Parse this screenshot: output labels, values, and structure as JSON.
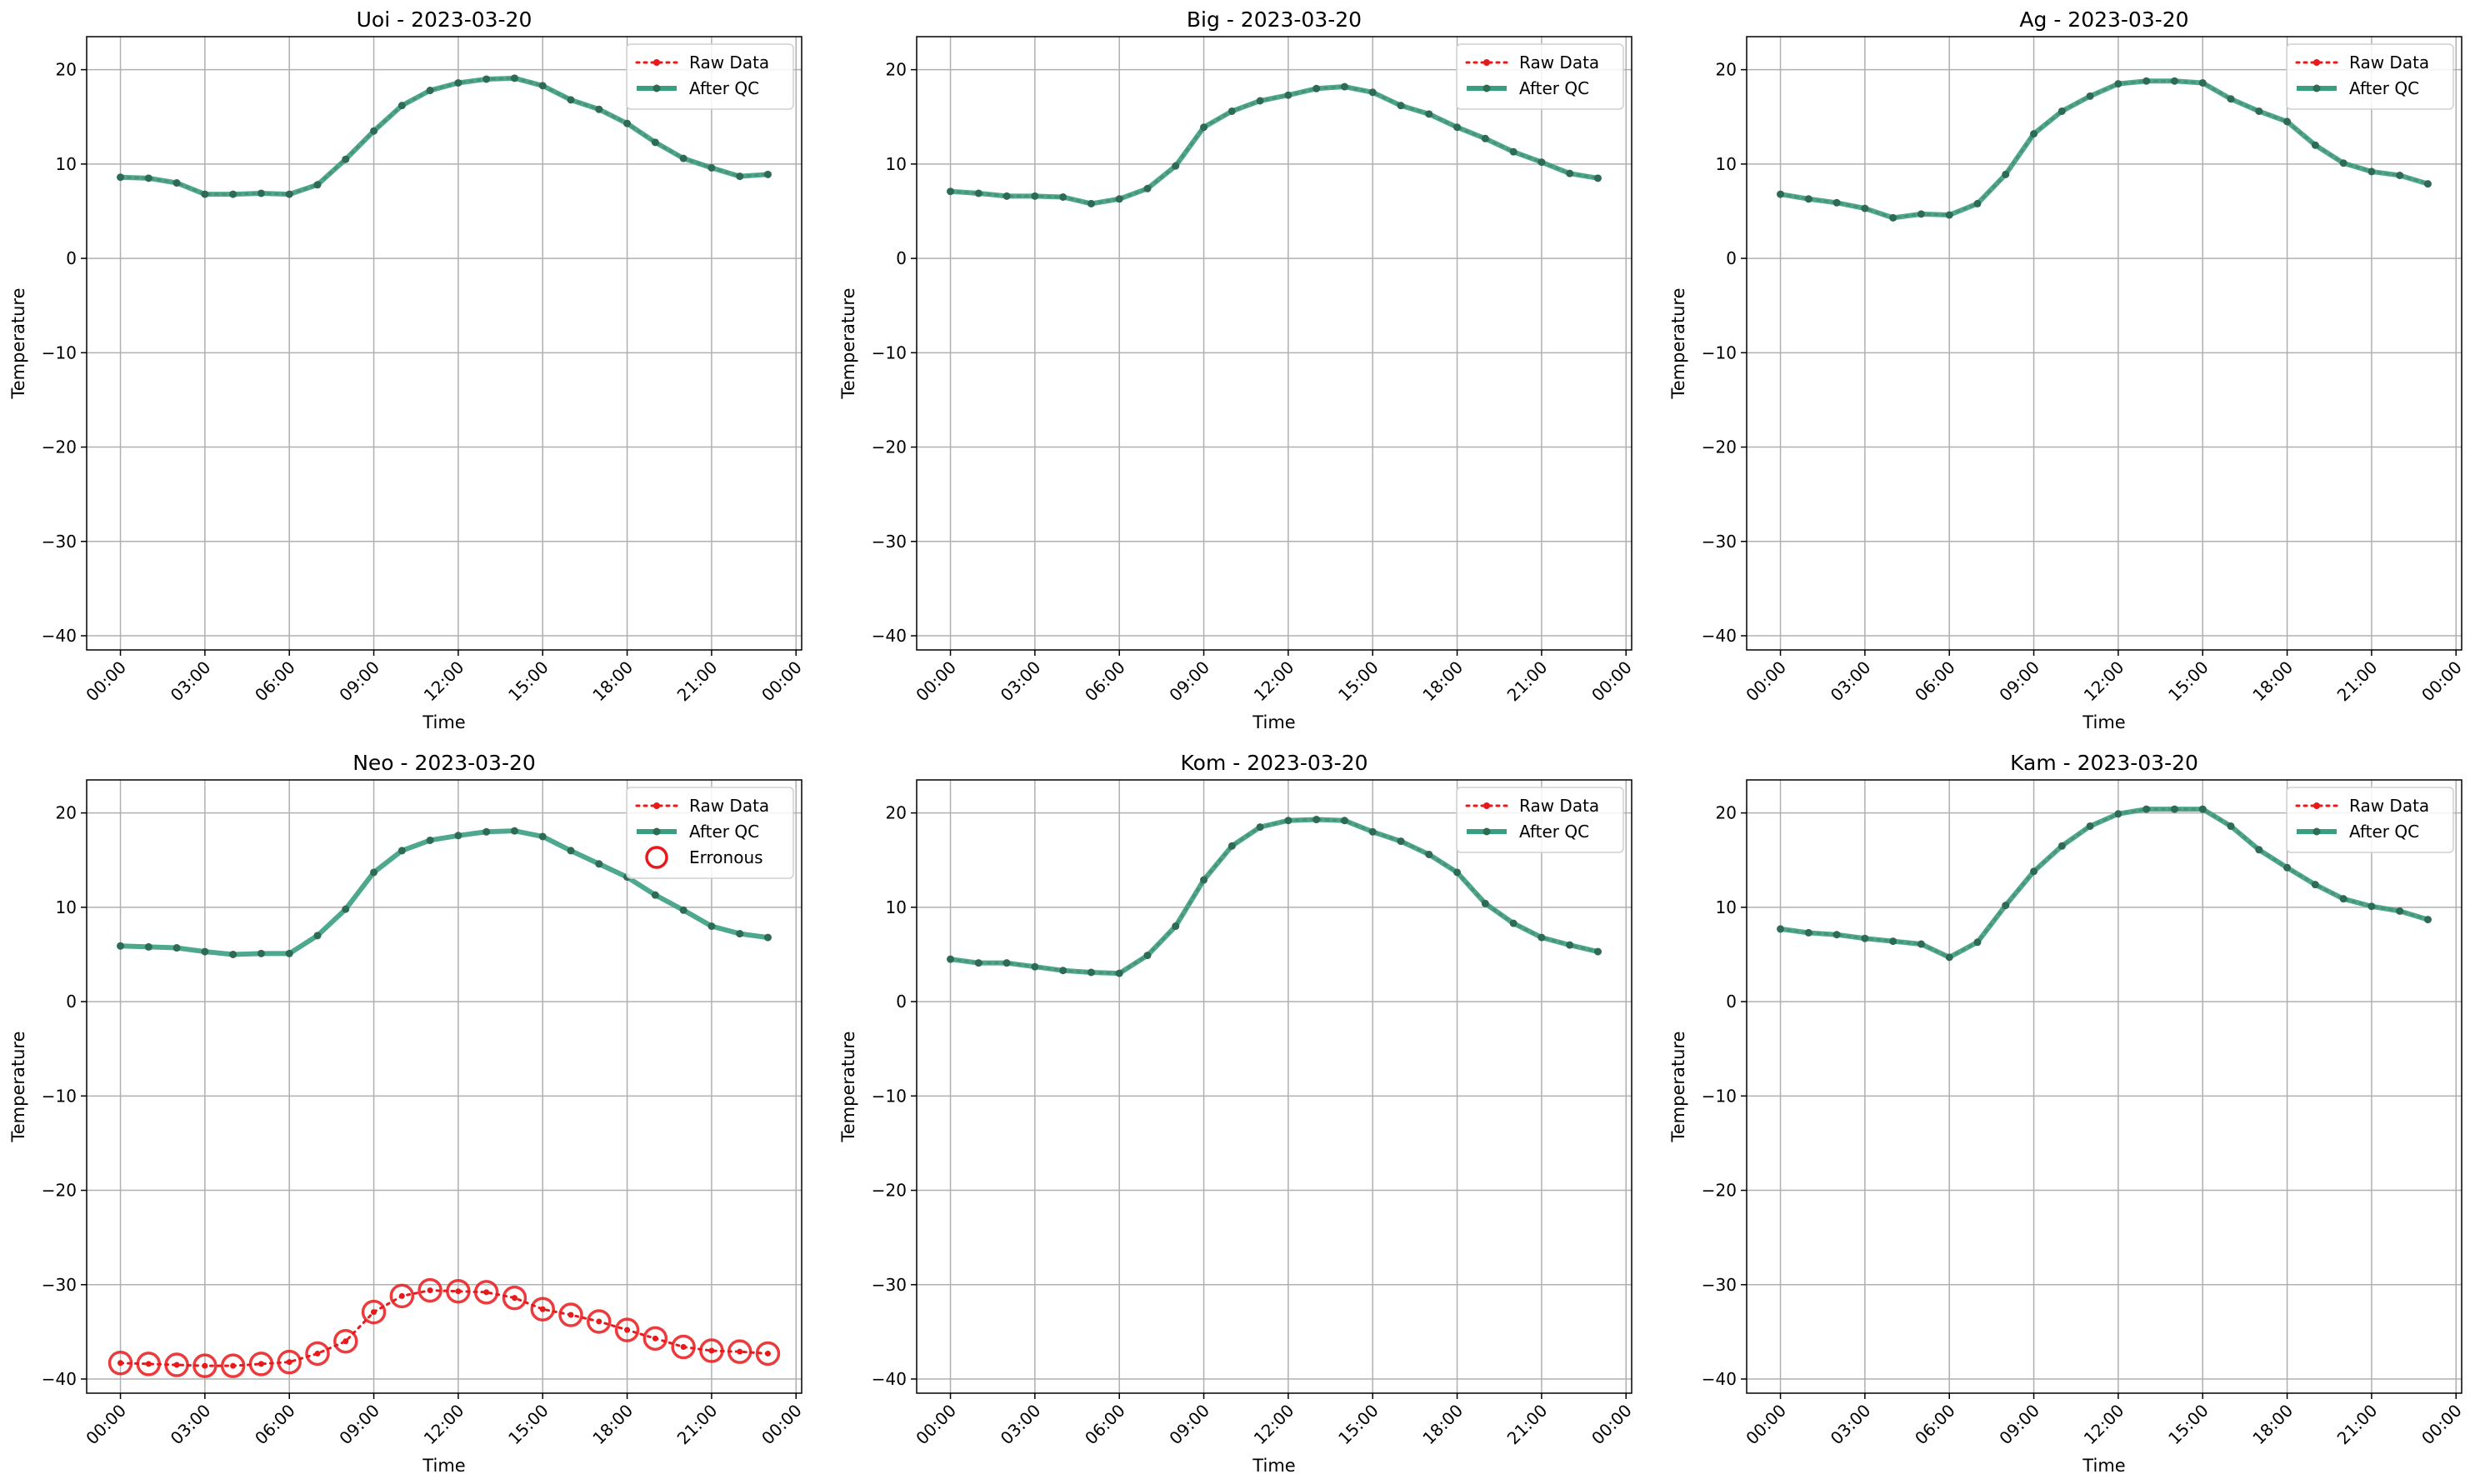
{
  "figure": {
    "colors": {
      "raw": "#e8191b",
      "after_qc_line": "#3a9e82",
      "after_qc_marker": "#2e6b55",
      "erroneous": "#e8191b",
      "grid": "#b0b0b0",
      "axes": "#000000"
    }
  },
  "chart_data": [
    {
      "type": "line",
      "title": "Uoi - 2023-03-20",
      "xlabel": "Time",
      "ylabel": "Temperature",
      "x": [
        "00:00",
        "01:00",
        "02:00",
        "03:00",
        "04:00",
        "05:00",
        "06:00",
        "07:00",
        "08:00",
        "09:00",
        "10:00",
        "11:00",
        "12:00",
        "13:00",
        "14:00",
        "15:00",
        "16:00",
        "17:00",
        "18:00",
        "19:00",
        "20:00",
        "21:00",
        "22:00",
        "23:00"
      ],
      "xticks": [
        "00:00",
        "03:00",
        "06:00",
        "09:00",
        "12:00",
        "15:00",
        "18:00",
        "21:00",
        "00:00"
      ],
      "yticks": [
        "20",
        "10",
        "0",
        "−10",
        "−20",
        "−30",
        "−40"
      ],
      "ylim": [
        -41.5,
        23.5
      ],
      "grid": true,
      "legend_position": "top-right",
      "series": [
        {
          "name": "Raw Data",
          "values": [
            8.6,
            8.5,
            8.0,
            6.8,
            6.8,
            6.9,
            6.8,
            7.8,
            10.5,
            13.5,
            16.2,
            17.8,
            18.6,
            19.0,
            19.1,
            18.3,
            16.8,
            15.8,
            14.3,
            12.3,
            10.6,
            9.6,
            8.7,
            8.9
          ]
        },
        {
          "name": "After QC",
          "values": [
            8.6,
            8.5,
            8.0,
            6.8,
            6.8,
            6.9,
            6.8,
            7.8,
            10.5,
            13.5,
            16.2,
            17.8,
            18.6,
            19.0,
            19.1,
            18.3,
            16.8,
            15.8,
            14.3,
            12.3,
            10.6,
            9.6,
            8.7,
            8.9
          ]
        }
      ]
    },
    {
      "type": "line",
      "title": "Big - 2023-03-20",
      "xlabel": "Time",
      "ylabel": "Temperature",
      "x": [
        "00:00",
        "01:00",
        "02:00",
        "03:00",
        "04:00",
        "05:00",
        "06:00",
        "07:00",
        "08:00",
        "09:00",
        "10:00",
        "11:00",
        "12:00",
        "13:00",
        "14:00",
        "15:00",
        "16:00",
        "17:00",
        "18:00",
        "19:00",
        "20:00",
        "21:00",
        "22:00",
        "23:00"
      ],
      "xticks": [
        "00:00",
        "03:00",
        "06:00",
        "09:00",
        "12:00",
        "15:00",
        "18:00",
        "21:00",
        "00:00"
      ],
      "yticks": [
        "20",
        "10",
        "0",
        "−10",
        "−20",
        "−30",
        "−40"
      ],
      "ylim": [
        -41.5,
        23.5
      ],
      "grid": true,
      "legend_position": "top-right",
      "series": [
        {
          "name": "Raw Data",
          "values": [
            7.1,
            6.9,
            6.6,
            6.6,
            6.5,
            5.8,
            6.3,
            7.4,
            9.8,
            13.9,
            15.6,
            16.7,
            17.3,
            18.0,
            18.2,
            17.6,
            16.2,
            15.3,
            13.9,
            12.7,
            11.3,
            10.2,
            9.0,
            8.5
          ]
        },
        {
          "name": "After QC",
          "values": [
            7.1,
            6.9,
            6.6,
            6.6,
            6.5,
            5.8,
            6.3,
            7.4,
            9.8,
            13.9,
            15.6,
            16.7,
            17.3,
            18.0,
            18.2,
            17.6,
            16.2,
            15.3,
            13.9,
            12.7,
            11.3,
            10.2,
            9.0,
            8.5
          ]
        }
      ]
    },
    {
      "type": "line",
      "title": "Ag - 2023-03-20",
      "xlabel": "Time",
      "ylabel": "Temperature",
      "x": [
        "00:00",
        "01:00",
        "02:00",
        "03:00",
        "04:00",
        "05:00",
        "06:00",
        "07:00",
        "08:00",
        "09:00",
        "10:00",
        "11:00",
        "12:00",
        "13:00",
        "14:00",
        "15:00",
        "16:00",
        "17:00",
        "18:00",
        "19:00",
        "20:00",
        "21:00",
        "22:00",
        "23:00"
      ],
      "xticks": [
        "00:00",
        "03:00",
        "06:00",
        "09:00",
        "12:00",
        "15:00",
        "18:00",
        "21:00",
        "00:00"
      ],
      "yticks": [
        "20",
        "10",
        "0",
        "−10",
        "−20",
        "−30",
        "−40"
      ],
      "ylim": [
        -41.5,
        23.5
      ],
      "grid": true,
      "legend_position": "top-right",
      "series": [
        {
          "name": "Raw Data",
          "values": [
            6.8,
            6.3,
            5.9,
            5.3,
            4.3,
            4.7,
            4.6,
            5.8,
            8.9,
            13.2,
            15.6,
            17.2,
            18.5,
            18.8,
            18.8,
            18.6,
            16.9,
            15.6,
            14.5,
            12.0,
            10.1,
            9.2,
            8.8,
            7.9
          ]
        },
        {
          "name": "After QC",
          "values": [
            6.8,
            6.3,
            5.9,
            5.3,
            4.3,
            4.7,
            4.6,
            5.8,
            8.9,
            13.2,
            15.6,
            17.2,
            18.5,
            18.8,
            18.8,
            18.6,
            16.9,
            15.6,
            14.5,
            12.0,
            10.1,
            9.2,
            8.8,
            7.9
          ]
        }
      ]
    },
    {
      "type": "line",
      "title": "Neo - 2023-03-20",
      "xlabel": "Time",
      "ylabel": "Temperature",
      "x": [
        "00:00",
        "01:00",
        "02:00",
        "03:00",
        "04:00",
        "05:00",
        "06:00",
        "07:00",
        "08:00",
        "09:00",
        "10:00",
        "11:00",
        "12:00",
        "13:00",
        "14:00",
        "15:00",
        "16:00",
        "17:00",
        "18:00",
        "19:00",
        "20:00",
        "21:00",
        "22:00",
        "23:00"
      ],
      "xticks": [
        "00:00",
        "03:00",
        "06:00",
        "09:00",
        "12:00",
        "15:00",
        "18:00",
        "21:00",
        "00:00"
      ],
      "yticks": [
        "20",
        "10",
        "0",
        "−10",
        "−20",
        "−30",
        "−40"
      ],
      "ylim": [
        -41.5,
        23.5
      ],
      "grid": true,
      "legend_position": "top-right",
      "series": [
        {
          "name": "Raw Data",
          "values": [
            -38.3,
            -38.4,
            -38.5,
            -38.6,
            -38.6,
            -38.4,
            -38.2,
            -37.3,
            -36.0,
            -32.9,
            -31.2,
            -30.6,
            -30.7,
            -30.8,
            -31.4,
            -32.6,
            -33.2,
            -33.9,
            -34.8,
            -35.7,
            -36.6,
            -37.0,
            -37.1,
            -37.3
          ]
        },
        {
          "name": "After QC",
          "values": [
            5.9,
            5.8,
            5.7,
            5.3,
            5.0,
            5.1,
            5.1,
            7.0,
            9.8,
            13.7,
            16.0,
            17.1,
            17.6,
            18.0,
            18.1,
            17.5,
            16.0,
            14.6,
            13.2,
            11.3,
            9.7,
            8.0,
            7.2,
            6.8
          ]
        },
        {
          "name": "Erronous",
          "values": [
            -38.3,
            -38.4,
            -38.5,
            -38.6,
            -38.6,
            -38.4,
            -38.2,
            -37.3,
            -36.0,
            -32.9,
            -31.2,
            -30.6,
            -30.7,
            -30.8,
            -31.4,
            -32.6,
            -33.2,
            -33.9,
            -34.8,
            -35.7,
            -36.6,
            -37.0,
            -37.1,
            -37.3
          ]
        }
      ]
    },
    {
      "type": "line",
      "title": "Kom - 2023-03-20",
      "xlabel": "Time",
      "ylabel": "Temperature",
      "x": [
        "00:00",
        "01:00",
        "02:00",
        "03:00",
        "04:00",
        "05:00",
        "06:00",
        "07:00",
        "08:00",
        "09:00",
        "10:00",
        "11:00",
        "12:00",
        "13:00",
        "14:00",
        "15:00",
        "16:00",
        "17:00",
        "18:00",
        "19:00",
        "20:00",
        "21:00",
        "22:00",
        "23:00"
      ],
      "xticks": [
        "00:00",
        "03:00",
        "06:00",
        "09:00",
        "12:00",
        "15:00",
        "18:00",
        "21:00",
        "00:00"
      ],
      "yticks": [
        "20",
        "10",
        "0",
        "−10",
        "−20",
        "−30",
        "−40"
      ],
      "ylim": [
        -41.5,
        23.5
      ],
      "grid": true,
      "legend_position": "top-right",
      "series": [
        {
          "name": "Raw Data",
          "values": [
            4.5,
            4.1,
            4.1,
            3.7,
            3.3,
            3.1,
            3.0,
            4.9,
            8.0,
            12.9,
            16.5,
            18.5,
            19.2,
            19.3,
            19.2,
            18.0,
            17.0,
            15.6,
            13.7,
            10.4,
            8.3,
            6.8,
            6.0,
            5.3
          ]
        },
        {
          "name": "After QC",
          "values": [
            4.5,
            4.1,
            4.1,
            3.7,
            3.3,
            3.1,
            3.0,
            4.9,
            8.0,
            12.9,
            16.5,
            18.5,
            19.2,
            19.3,
            19.2,
            18.0,
            17.0,
            15.6,
            13.7,
            10.4,
            8.3,
            6.8,
            6.0,
            5.3
          ]
        }
      ]
    },
    {
      "type": "line",
      "title": "Kam - 2023-03-20",
      "xlabel": "Time",
      "ylabel": "Temperature",
      "x": [
        "00:00",
        "01:00",
        "02:00",
        "03:00",
        "04:00",
        "05:00",
        "06:00",
        "07:00",
        "08:00",
        "09:00",
        "10:00",
        "11:00",
        "12:00",
        "13:00",
        "14:00",
        "15:00",
        "16:00",
        "17:00",
        "18:00",
        "19:00",
        "20:00",
        "21:00",
        "22:00",
        "23:00"
      ],
      "xticks": [
        "00:00",
        "03:00",
        "06:00",
        "09:00",
        "12:00",
        "15:00",
        "18:00",
        "21:00",
        "00:00"
      ],
      "yticks": [
        "20",
        "10",
        "0",
        "−10",
        "−20",
        "−30",
        "−40"
      ],
      "ylim": [
        -41.5,
        23.5
      ],
      "grid": true,
      "legend_position": "top-right",
      "series": [
        {
          "name": "Raw Data",
          "values": [
            7.7,
            7.3,
            7.1,
            6.7,
            6.4,
            6.1,
            4.7,
            6.3,
            10.2,
            13.8,
            16.5,
            18.6,
            19.9,
            20.4,
            20.4,
            20.4,
            18.6,
            16.1,
            14.2,
            12.4,
            10.9,
            10.1,
            9.6,
            8.7
          ]
        },
        {
          "name": "After QC",
          "values": [
            7.7,
            7.3,
            7.1,
            6.7,
            6.4,
            6.1,
            4.7,
            6.3,
            10.2,
            13.8,
            16.5,
            18.6,
            19.9,
            20.4,
            20.4,
            20.4,
            18.6,
            16.1,
            14.2,
            12.4,
            10.9,
            10.1,
            9.6,
            8.7
          ]
        }
      ]
    }
  ]
}
